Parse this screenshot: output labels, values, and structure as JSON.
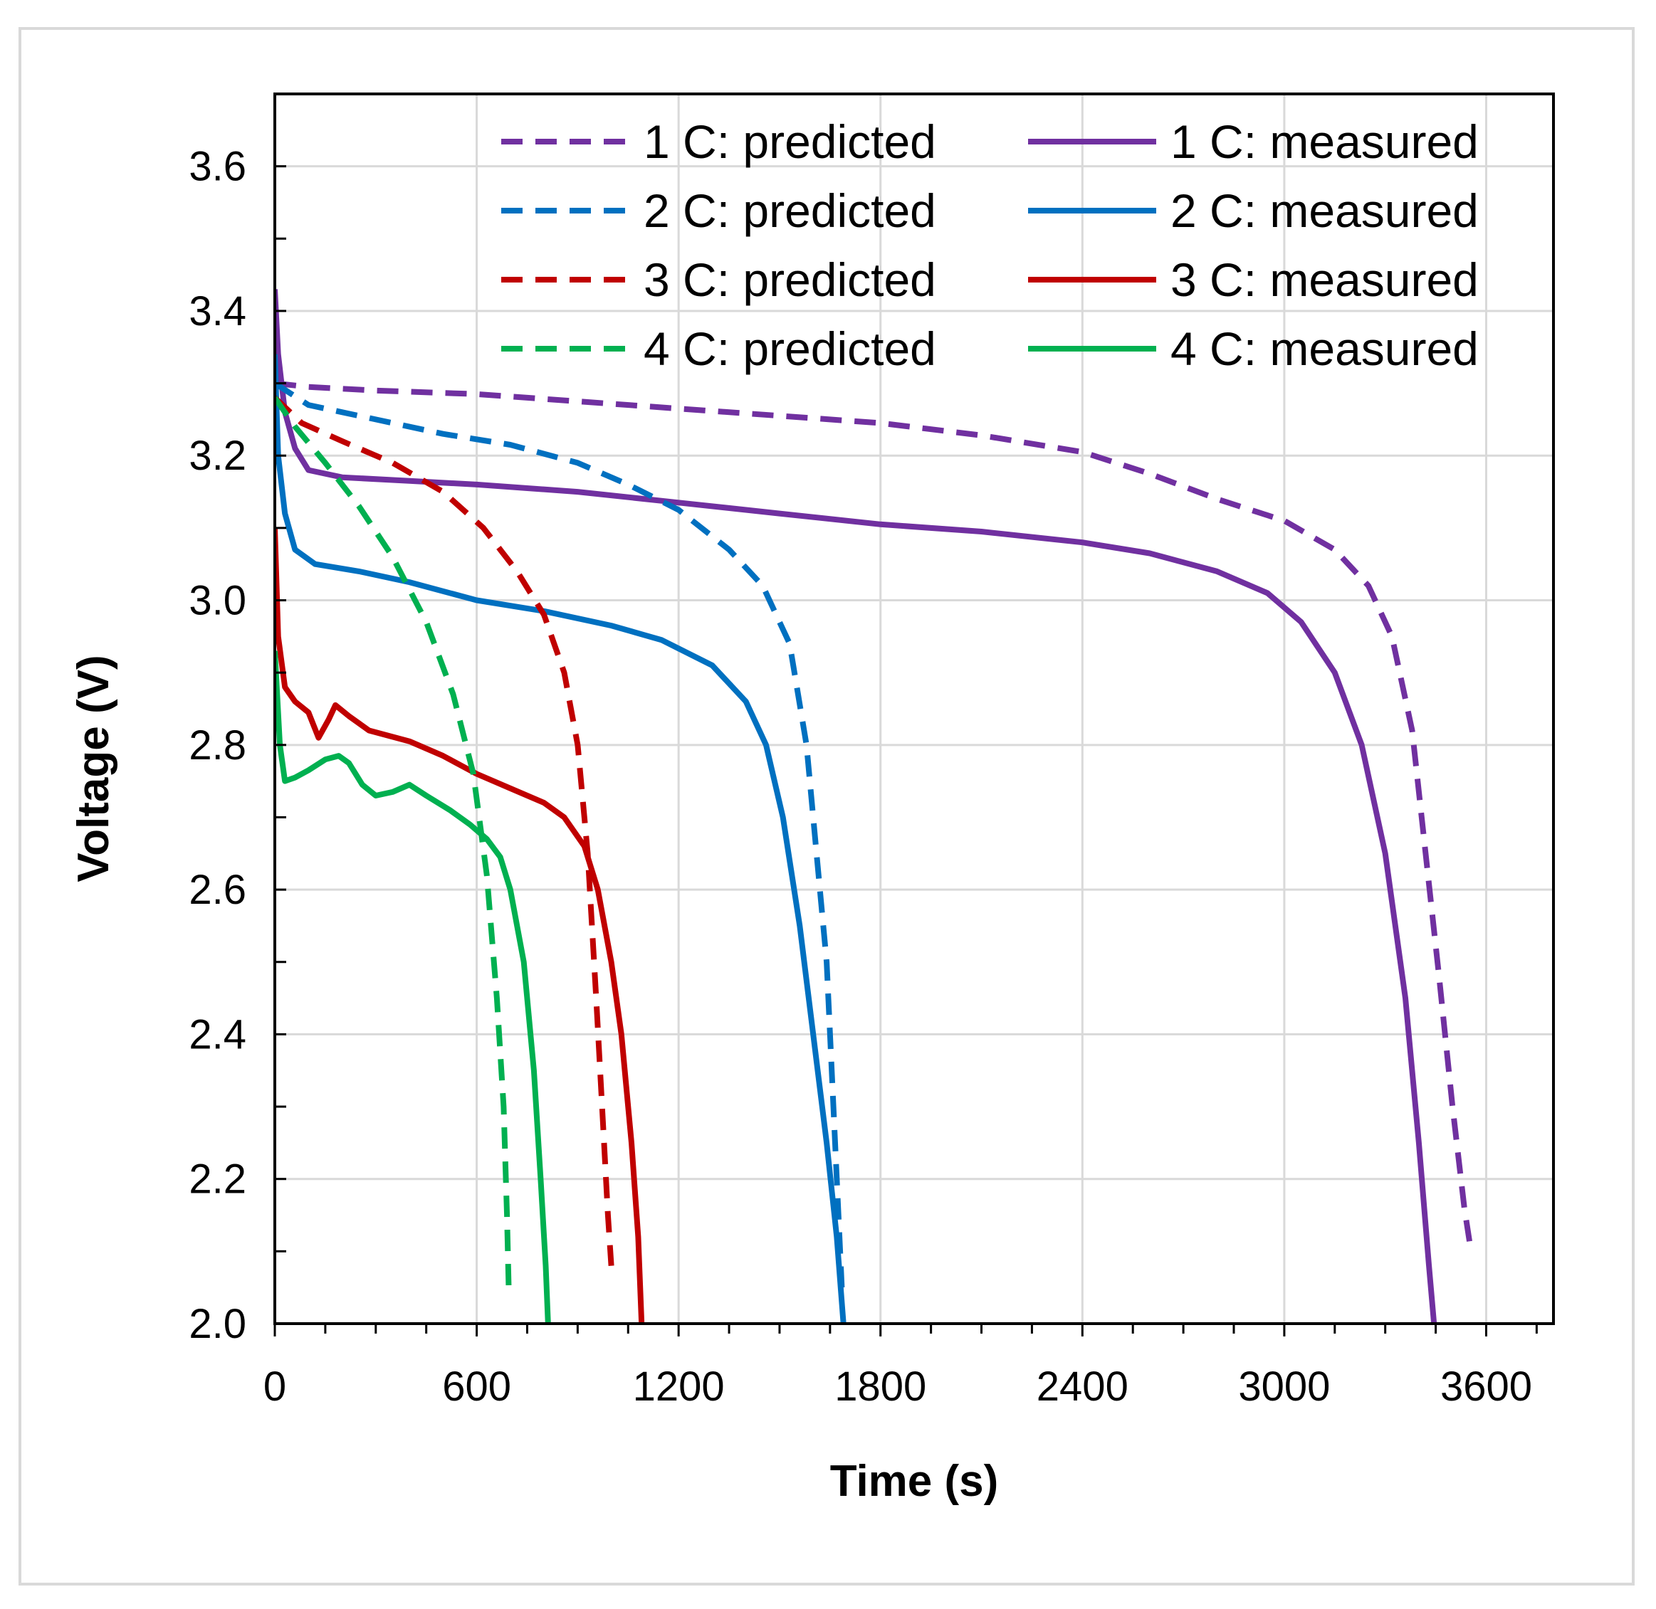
{
  "chart_data": {
    "type": "line",
    "title": "",
    "xlabel": "Time (s)",
    "ylabel": "Voltage (V)",
    "xlim": [
      0,
      3800
    ],
    "ylim": [
      2.0,
      3.7
    ],
    "xticks": [
      0,
      600,
      1200,
      1800,
      2400,
      3000,
      3600
    ],
    "xtick_labels": [
      "0",
      "600",
      "1200",
      "1800",
      "2400",
      "3000",
      "3600"
    ],
    "yticks": [
      2.0,
      2.2,
      2.4,
      2.6,
      2.8,
      3.0,
      3.2,
      3.4,
      3.6
    ],
    "ytick_labels": [
      "2.0",
      "2.2",
      "2.4",
      "2.6",
      "2.8",
      "3.0",
      "3.2",
      "3.4",
      "3.6"
    ],
    "grid": true,
    "legend_position": "top-right",
    "series": [
      {
        "name": "1 C: predicted",
        "color": "#7030a0",
        "style": "dashed",
        "points": [
          [
            0,
            3.3
          ],
          [
            100,
            3.295
          ],
          [
            300,
            3.29
          ],
          [
            600,
            3.285
          ],
          [
            900,
            3.275
          ],
          [
            1200,
            3.265
          ],
          [
            1500,
            3.255
          ],
          [
            1800,
            3.245
          ],
          [
            2100,
            3.228
          ],
          [
            2400,
            3.205
          ],
          [
            2600,
            3.175
          ],
          [
            2800,
            3.14
          ],
          [
            3000,
            3.11
          ],
          [
            3150,
            3.07
          ],
          [
            3250,
            3.02
          ],
          [
            3320,
            2.95
          ],
          [
            3380,
            2.82
          ],
          [
            3420,
            2.65
          ],
          [
            3460,
            2.48
          ],
          [
            3500,
            2.3
          ],
          [
            3535,
            2.16
          ],
          [
            3555,
            2.1
          ]
        ]
      },
      {
        "name": "1 C: measured",
        "color": "#7030a0",
        "style": "solid",
        "points": [
          [
            0,
            3.43
          ],
          [
            10,
            3.34
          ],
          [
            30,
            3.26
          ],
          [
            60,
            3.21
          ],
          [
            100,
            3.18
          ],
          [
            200,
            3.17
          ],
          [
            400,
            3.165
          ],
          [
            600,
            3.16
          ],
          [
            900,
            3.15
          ],
          [
            1200,
            3.135
          ],
          [
            1500,
            3.12
          ],
          [
            1800,
            3.105
          ],
          [
            2100,
            3.095
          ],
          [
            2400,
            3.08
          ],
          [
            2600,
            3.065
          ],
          [
            2800,
            3.04
          ],
          [
            2950,
            3.01
          ],
          [
            3050,
            2.97
          ],
          [
            3150,
            2.9
          ],
          [
            3230,
            2.8
          ],
          [
            3300,
            2.65
          ],
          [
            3360,
            2.45
          ],
          [
            3400,
            2.25
          ],
          [
            3430,
            2.08
          ],
          [
            3445,
            2.0
          ]
        ]
      },
      {
        "name": "2 C: predicted",
        "color": "#0070c0",
        "style": "dashed",
        "points": [
          [
            0,
            3.3
          ],
          [
            100,
            3.27
          ],
          [
            300,
            3.25
          ],
          [
            500,
            3.23
          ],
          [
            700,
            3.215
          ],
          [
            900,
            3.19
          ],
          [
            1050,
            3.16
          ],
          [
            1200,
            3.125
          ],
          [
            1350,
            3.07
          ],
          [
            1450,
            3.02
          ],
          [
            1530,
            2.94
          ],
          [
            1580,
            2.8
          ],
          [
            1610,
            2.65
          ],
          [
            1640,
            2.5
          ],
          [
            1660,
            2.3
          ],
          [
            1675,
            2.15
          ],
          [
            1685,
            2.05
          ]
        ]
      },
      {
        "name": "2 C: measured",
        "color": "#0070c0",
        "style": "solid",
        "points": [
          [
            0,
            3.34
          ],
          [
            10,
            3.2
          ],
          [
            30,
            3.12
          ],
          [
            60,
            3.07
          ],
          [
            120,
            3.05
          ],
          [
            250,
            3.04
          ],
          [
            400,
            3.025
          ],
          [
            600,
            3.0
          ],
          [
            800,
            2.985
          ],
          [
            1000,
            2.965
          ],
          [
            1150,
            2.945
          ],
          [
            1300,
            2.91
          ],
          [
            1400,
            2.86
          ],
          [
            1460,
            2.8
          ],
          [
            1510,
            2.7
          ],
          [
            1560,
            2.55
          ],
          [
            1600,
            2.4
          ],
          [
            1640,
            2.25
          ],
          [
            1670,
            2.12
          ],
          [
            1690,
            2.0
          ]
        ]
      },
      {
        "name": "3 C: predicted",
        "color": "#c00000",
        "style": "dashed",
        "points": [
          [
            0,
            3.28
          ],
          [
            80,
            3.245
          ],
          [
            200,
            3.22
          ],
          [
            350,
            3.19
          ],
          [
            500,
            3.15
          ],
          [
            620,
            3.1
          ],
          [
            720,
            3.04
          ],
          [
            800,
            2.98
          ],
          [
            860,
            2.9
          ],
          [
            900,
            2.8
          ],
          [
            930,
            2.65
          ],
          [
            955,
            2.45
          ],
          [
            975,
            2.28
          ],
          [
            990,
            2.15
          ],
          [
            1000,
            2.08
          ]
        ]
      },
      {
        "name": "3 C: measured",
        "color": "#c00000",
        "style": "solid",
        "points": [
          [
            0,
            3.1
          ],
          [
            10,
            2.95
          ],
          [
            30,
            2.88
          ],
          [
            60,
            2.86
          ],
          [
            100,
            2.845
          ],
          [
            130,
            2.81
          ],
          [
            160,
            2.835
          ],
          [
            180,
            2.855
          ],
          [
            220,
            2.84
          ],
          [
            280,
            2.82
          ],
          [
            400,
            2.805
          ],
          [
            500,
            2.785
          ],
          [
            600,
            2.76
          ],
          [
            700,
            2.74
          ],
          [
            800,
            2.72
          ],
          [
            860,
            2.7
          ],
          [
            920,
            2.66
          ],
          [
            960,
            2.6
          ],
          [
            1000,
            2.5
          ],
          [
            1030,
            2.4
          ],
          [
            1060,
            2.25
          ],
          [
            1080,
            2.12
          ],
          [
            1090,
            2.0
          ]
        ]
      },
      {
        "name": "4 C: predicted",
        "color": "#00b050",
        "style": "dashed",
        "points": [
          [
            0,
            3.28
          ],
          [
            60,
            3.24
          ],
          [
            150,
            3.19
          ],
          [
            250,
            3.13
          ],
          [
            350,
            3.06
          ],
          [
            450,
            2.97
          ],
          [
            530,
            2.87
          ],
          [
            590,
            2.76
          ],
          [
            630,
            2.62
          ],
          [
            660,
            2.45
          ],
          [
            680,
            2.3
          ],
          [
            690,
            2.15
          ],
          [
            695,
            2.05
          ]
        ]
      },
      {
        "name": "4 C: measured",
        "color": "#00b050",
        "style": "solid",
        "points": [
          [
            0,
            2.93
          ],
          [
            15,
            2.8
          ],
          [
            30,
            2.75
          ],
          [
            60,
            2.755
          ],
          [
            100,
            2.765
          ],
          [
            150,
            2.78
          ],
          [
            190,
            2.785
          ],
          [
            220,
            2.775
          ],
          [
            260,
            2.745
          ],
          [
            300,
            2.73
          ],
          [
            350,
            2.735
          ],
          [
            400,
            2.745
          ],
          [
            450,
            2.73
          ],
          [
            520,
            2.71
          ],
          [
            580,
            2.69
          ],
          [
            630,
            2.67
          ],
          [
            670,
            2.645
          ],
          [
            700,
            2.6
          ],
          [
            740,
            2.5
          ],
          [
            770,
            2.35
          ],
          [
            790,
            2.2
          ],
          [
            805,
            2.08
          ],
          [
            812,
            2.0
          ]
        ]
      }
    ]
  }
}
